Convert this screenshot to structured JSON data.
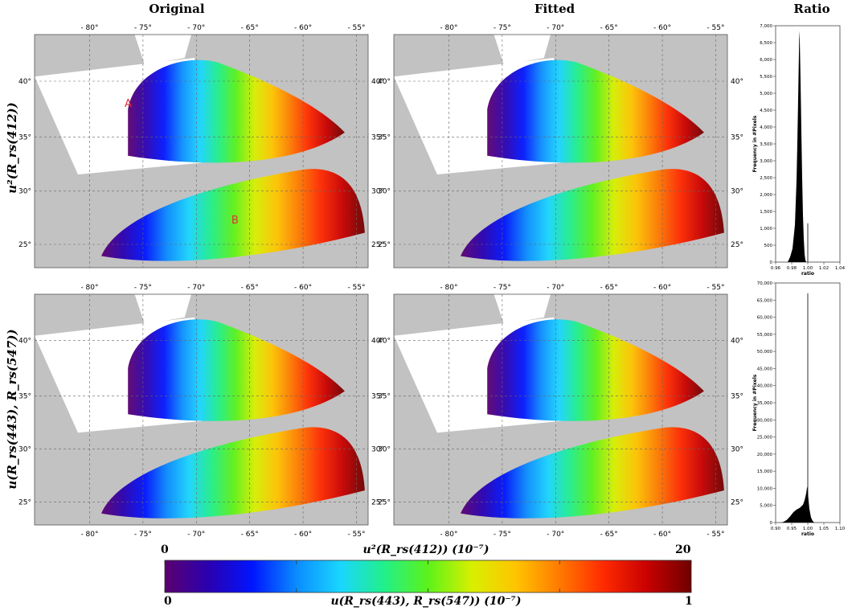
{
  "headers": {
    "original": "Original",
    "fitted": "Fitted",
    "ratio": "Ratio"
  },
  "row_labels": {
    "top": "u²(R_rs(412))",
    "bottom": "u(R_rs(443), R_rs(547))"
  },
  "map_ticks": {
    "lon": [
      "- 80°",
      "- 75°",
      "- 70°",
      "- 65°",
      "- 60°",
      "- 55°"
    ],
    "lat": [
      "40°",
      "35°",
      "30°",
      "25°"
    ]
  },
  "annotations": {
    "point_a": "A",
    "point_b": "B"
  },
  "colorbar": {
    "top_label": "u²(R_rs(412)) (10⁻⁷)",
    "bottom_label": "u(R_rs(443), R_rs(547)) (10⁻⁷)",
    "top_min": "0",
    "top_max": "20",
    "bottom_min": "0",
    "bottom_max": "1",
    "colors": [
      "#5b006e",
      "#2a00b0",
      "#0015ff",
      "#0a8cff",
      "#1ad6ff",
      "#21f08a",
      "#5cf21a",
      "#d8f000",
      "#ffc400",
      "#ff7a00",
      "#ff2a00",
      "#c80000",
      "#6e0000"
    ]
  },
  "chart_data": [
    {
      "type": "area",
      "ylabel": "Frequency in #Pixels",
      "xlabel": "ratio",
      "xlim": [
        0.96,
        1.04
      ],
      "ylim": [
        0,
        7000
      ],
      "xticks": [
        "0.96",
        "0.98",
        "1.00",
        "1.02",
        "1.04"
      ],
      "yticks": [
        "0",
        "500",
        "1,000",
        "1,500",
        "2,000",
        "2,500",
        "3,000",
        "3,500",
        "4,000",
        "4,500",
        "5,000",
        "5,500",
        "6,000",
        "6,500",
        "7,000"
      ],
      "x": [
        0.975,
        0.978,
        0.981,
        0.984,
        0.986,
        0.987,
        0.988,
        0.989,
        0.9895,
        0.99,
        0.991,
        0.992,
        0.993,
        0.994,
        0.995,
        0.996,
        0.997,
        0.998
      ],
      "values": [
        0,
        150,
        400,
        1100,
        2400,
        3500,
        4800,
        6200,
        6850,
        6600,
        5400,
        3900,
        2500,
        1400,
        700,
        250,
        60,
        0
      ],
      "spike": {
        "x": 1.0,
        "value": 1150
      }
    },
    {
      "type": "area",
      "ylabel": "Frequency in #Pixels",
      "xlabel": "ratio",
      "xlim": [
        0.9,
        1.1
      ],
      "ylim": [
        0,
        70000
      ],
      "xticks": [
        "0.90",
        "0.95",
        "1.00",
        "1.05",
        "1.10"
      ],
      "yticks": [
        "0",
        "5,000",
        "10,000",
        "15,000",
        "20,000",
        "25,000",
        "30,000",
        "35,000",
        "40,000",
        "45,000",
        "50,000",
        "55,000",
        "60,000",
        "65,000",
        "70,000"
      ],
      "x": [
        0.915,
        0.925,
        0.935,
        0.945,
        0.955,
        0.965,
        0.975,
        0.985,
        0.99,
        0.995,
        0.998,
        1.0,
        1.002,
        1.005,
        1.01,
        1.015,
        1.02
      ],
      "values": [
        0,
        200,
        800,
        1800,
        3000,
        3800,
        4300,
        5200,
        6500,
        8500,
        10500,
        9000,
        7000,
        4000,
        1500,
        500,
        0
      ],
      "spike": {
        "x": 1.0,
        "value": 67000
      }
    }
  ]
}
